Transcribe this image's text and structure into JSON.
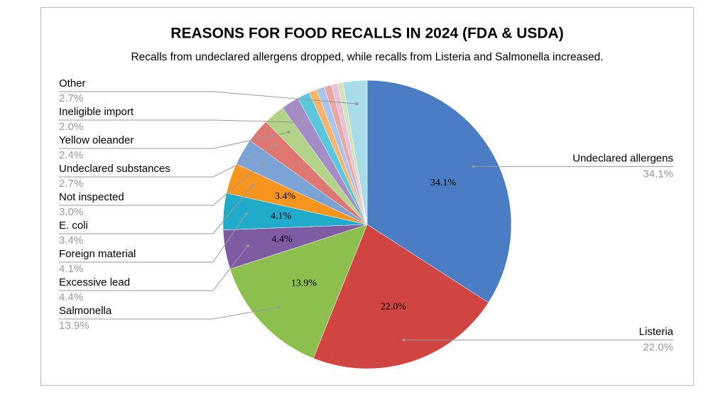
{
  "chart_data": {
    "type": "pie",
    "title": "REASONS FOR FOOD RECALLS IN 2024 (FDA & USDA)",
    "subtitle": "Recalls from undeclared allergens dropped, while recalls from Listeria and Salmonella increased.",
    "categories": [
      "Undeclared allergens",
      "Listeria",
      "Salmonella",
      "Excessive lead",
      "Foreign material",
      "E. coli",
      "Not inspected",
      "Undeclared substances",
      "Yellow oleander",
      "Ineligible import",
      null,
      null,
      null,
      null,
      null,
      null,
      "Other"
    ],
    "values": [
      34.1,
      22.0,
      13.9,
      4.4,
      4.1,
      3.4,
      3.0,
      2.7,
      2.4,
      2.0,
      1.4,
      0.9,
      0.9,
      0.8,
      0.7,
      0.6,
      2.7
    ],
    "value_labels": [
      "34.1%",
      "22.0%",
      "13.9%",
      "4.4%",
      "4.1%",
      "3.4%",
      "3.0%",
      "2.7%",
      "2.4%",
      "2.0%",
      null,
      null,
      null,
      null,
      null,
      null,
      "2.7%"
    ],
    "colors": [
      "#4a7dc4",
      "#d04541",
      "#8dbf4f",
      "#7f5ba4",
      "#1fabc9",
      "#f7951f",
      "#7ca3d6",
      "#de7672",
      "#b3d388",
      "#a48cc5",
      "#5bc7dc",
      "#f9b46c",
      "#aac5e9",
      "#eba7a5",
      "#e6c2d8",
      "#d2e4b5",
      "#a9dbe9"
    ]
  }
}
